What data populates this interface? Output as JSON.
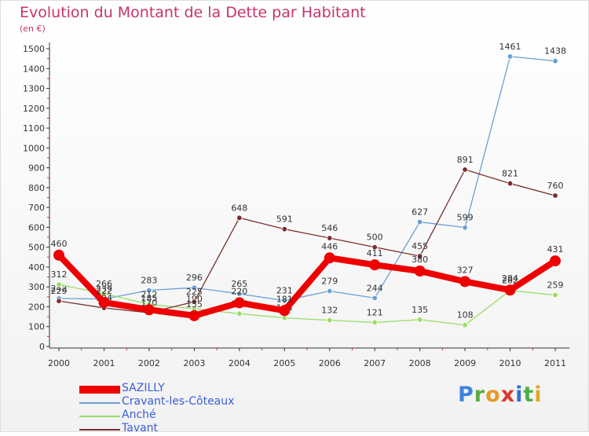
{
  "title": "Evolution du Montant de la Dette par Habitant",
  "subtitle": "(en €)",
  "logo": {
    "letters": [
      {
        "ch": "P",
        "color": "#3f83e0"
      },
      {
        "ch": "r",
        "color": "#5aa845"
      },
      {
        "ch": "o",
        "color": "#e59b25"
      },
      {
        "ch": "x",
        "color": "#d83a2b"
      },
      {
        "ch": "i",
        "color": "#2f6fd6"
      },
      {
        "ch": "t",
        "color": "#4fae45"
      },
      {
        "ch": "i",
        "color": "#e5a52a"
      }
    ]
  },
  "chart_data": {
    "type": "line",
    "title": "Evolution du Montant de la Dette par Habitant",
    "subtitle": "(en €)",
    "x": [
      "2000",
      "2001",
      "2002",
      "2003",
      "2004",
      "2005",
      "2006",
      "2007",
      "2008",
      "2009",
      "2010",
      "2011"
    ],
    "ylim": [
      0,
      1500
    ],
    "yticks": [
      0,
      100,
      200,
      300,
      400,
      500,
      600,
      700,
      800,
      900,
      1000,
      1100,
      1200,
      1300,
      1400,
      1500
    ],
    "grid": false,
    "legend_position": "bottom-left",
    "series": [
      {
        "name": "SAZILLY",
        "color": "#ee0000",
        "values": [
          460,
          222,
          185,
          155,
          220,
          181,
          446,
          411,
          380,
          327,
          284,
          431
        ]
      },
      {
        "name": "Cravant-les-Côteaux",
        "color": "#6a9fd4",
        "values": [
          242,
          239,
          283,
          296,
          265,
          231,
          279,
          244,
          627,
          599,
          1461,
          1438
        ]
      },
      {
        "name": "Anché",
        "color": "#99dd66",
        "values": [
          312,
          266,
          212,
          190,
          165,
          144,
          132,
          121,
          135,
          108,
          282,
          259
        ]
      },
      {
        "name": "Tavant",
        "color": "#7a2f2f",
        "values": [
          229,
          194,
          170,
          225,
          648,
          591,
          546,
          500,
          455,
          891,
          821,
          760
        ]
      }
    ]
  }
}
